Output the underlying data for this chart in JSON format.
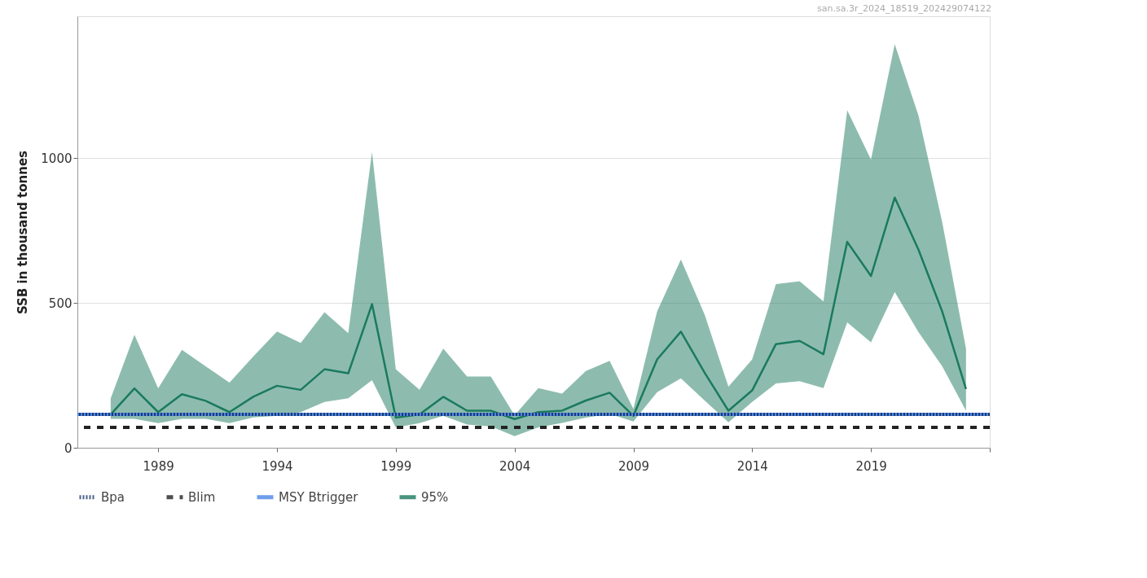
{
  "chart_data": {
    "type": "line",
    "ylabel": "SSB in thousand tonnes",
    "annotations": [
      "san.sa.3r_2024_18519_202429074122"
    ],
    "x": [
      1987,
      1988,
      1989,
      1990,
      1991,
      1992,
      1993,
      1994,
      1995,
      1996,
      1997,
      1998,
      1999,
      2000,
      2001,
      2002,
      2003,
      2004,
      2005,
      2006,
      2007,
      2008,
      2009,
      2010,
      2011,
      2012,
      2013,
      2014,
      2015,
      2016,
      2017,
      2018,
      2019,
      2020,
      2021,
      2022,
      2023
    ],
    "series": [
      {
        "name": "95%",
        "color": "#1b7a5e",
        "values": [
          115,
          205,
          123,
          185,
          162,
          123,
          176,
          214,
          200,
          271,
          257,
          496,
          104,
          115,
          176,
          128,
          128,
          99,
          123,
          128,
          163,
          190,
          110,
          305,
          401,
          259,
          128,
          198,
          358,
          369,
          323,
          711,
          593,
          864,
          684,
          470,
          203
        ],
        "lower": [
          100,
          100,
          85,
          100,
          100,
          85,
          105,
          110,
          123,
          158,
          171,
          233,
          70,
          85,
          110,
          80,
          74,
          40,
          70,
          86,
          104,
          117,
          91,
          192,
          240,
          163,
          88,
          158,
          222,
          230,
          206,
          433,
          364,
          538,
          399,
          281,
          128
        ],
        "upper": [
          170,
          390,
          205,
          338,
          281,
          225,
          315,
          401,
          362,
          468,
          396,
          1021,
          271,
          200,
          342,
          246,
          246,
          112,
          206,
          187,
          265,
          300,
          134,
          471,
          650,
          460,
          211,
          305,
          565,
          575,
          505,
          1165,
          995,
          1394,
          1147,
          778,
          342
        ]
      }
    ],
    "xlim": [
      1985.6,
      2024
    ],
    "xticks": [
      1989,
      1994,
      1999,
      2004,
      2009,
      2014,
      2019,
      {
        "value": 2024,
        "label": null
      }
    ],
    "ylim": [
      0,
      1490
    ],
    "yticks": [
      0,
      500,
      {
        "value": 1000,
        "label": "1000"
      }
    ],
    "grid": "y",
    "legend": "bottom",
    "line_style": "solid",
    "ref_lines": [
      {
        "axis": "y",
        "value": 115,
        "label": "Bpa",
        "color": "#1f3a6e",
        "line_style": "dotted"
      },
      {
        "axis": "y",
        "value": 70,
        "label": "Blim",
        "color": "#222222",
        "line_style": "dashed"
      },
      {
        "axis": "y",
        "value": 115,
        "label": "MSY Btrigger",
        "color": "#4a86e8",
        "line_style": "solid"
      }
    ]
  }
}
